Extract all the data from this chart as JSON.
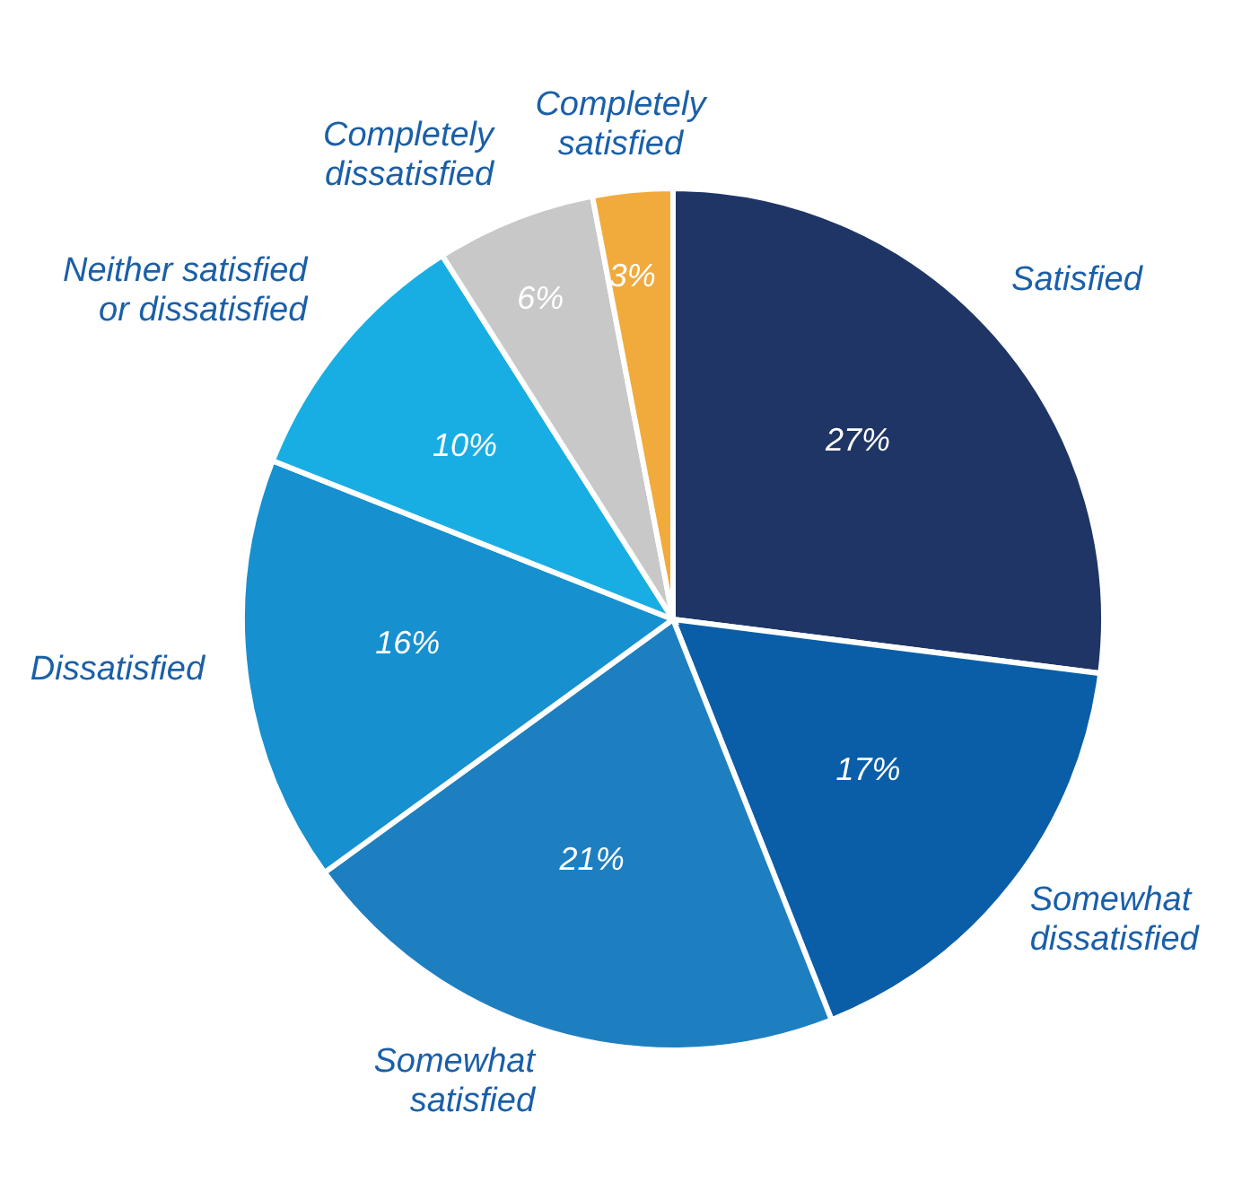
{
  "chart_data": {
    "type": "pie",
    "categories": [
      "Satisfied",
      "Somewhat dissatisfied",
      "Somewhat satisfied",
      "Dissatisfied",
      "Neither satisfied or dissatisfied",
      "Completely dissatisfied",
      "Completely satisfied"
    ],
    "values": [
      27,
      17,
      21,
      16,
      10,
      6,
      3
    ],
    "value_labels": [
      "27%",
      "17%",
      "21%",
      "16%",
      "10%",
      "6%",
      "3%"
    ],
    "colors": [
      "#1f3566",
      "#0a5ea8",
      "#1e7fc0",
      "#1690cf",
      "#19aee3",
      "#c8c8c8",
      "#f0ab3c"
    ]
  }
}
